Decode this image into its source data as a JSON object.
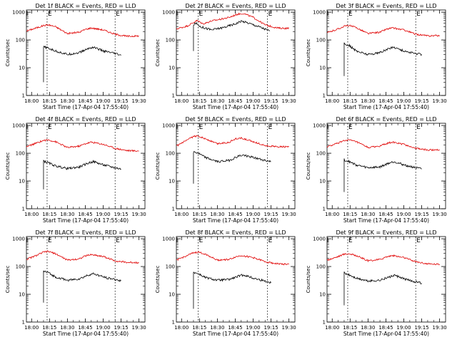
{
  "figure": {
    "colors": {
      "events": "#000000",
      "lld": "#e00000",
      "axes": "#000000"
    }
  },
  "chart_data": [
    {
      "type": "line",
      "title": "Det 1f BLACK = Events, RED = LLD",
      "xlabel": "Start Time (17-Apr-04 17:55:40)",
      "ylabel": "Counts/sec",
      "x_ticks": [
        "18:00",
        "18:15",
        "18:30",
        "18:45",
        "19:00",
        "19:15",
        "19:30"
      ],
      "y_ticks": [
        "1",
        "10",
        "100",
        "1000"
      ],
      "xlim": [
        "17:55:40",
        "19:35"
      ],
      "ylim": [
        1,
        1200
      ],
      "y_scale": "log",
      "markers": [
        "18:13",
        "19:10"
      ],
      "marker_labels": [
        "E",
        "E"
      ],
      "grid": false,
      "series": [
        {
          "x": [
            "17:55:40",
            "18:05",
            "18:10",
            "18:14",
            "18:20",
            "18:30",
            "18:40",
            "18:45",
            "18:50",
            "19:00",
            "19:10",
            "19:20",
            "19:30"
          ],
          "y": [
            210,
            280,
            330,
            350,
            300,
            170,
            190,
            240,
            270,
            230,
            160,
            135,
            140
          ]
        },
        {
          "x": [
            "18:10",
            "18:10",
            "18:11",
            "18:14",
            "18:20",
            "18:30",
            "18:40",
            "18:48",
            "18:52",
            "19:00",
            "19:10",
            "19:15"
          ],
          "y": [
            3,
            55,
            55,
            50,
            40,
            30,
            35,
            50,
            55,
            40,
            32,
            28
          ]
        }
      ]
    },
    {
      "type": "line",
      "title": "Det 2f BLACK = Events, RED = LLD",
      "xlabel": "Start Time (17-Apr-04 17:55:40)",
      "ylabel": "Counts/sec",
      "x_ticks": [
        "18:00",
        "18:15",
        "18:30",
        "18:45",
        "19:00",
        "19:15",
        "19:30"
      ],
      "y_ticks": [
        "1",
        "10",
        "100",
        "1000"
      ],
      "xlim": [
        "17:55:40",
        "19:35"
      ],
      "ylim": [
        1,
        1200
      ],
      "y_scale": "log",
      "markers": [
        "18:14",
        "19:12"
      ],
      "marker_labels": [
        "E",
        "E"
      ],
      "grid": false,
      "series": [
        {
          "x": [
            "17:55:40",
            "18:05",
            "18:13",
            "18:18",
            "18:25",
            "18:32",
            "18:40",
            "18:47",
            "18:52",
            "19:00",
            "19:10",
            "19:20",
            "19:30"
          ],
          "y": [
            250,
            320,
            500,
            380,
            480,
            550,
            650,
            850,
            900,
            650,
            350,
            270,
            260
          ]
        },
        {
          "x": [
            "18:10",
            "18:10",
            "18:12",
            "18:16",
            "18:25",
            "18:35",
            "18:45",
            "18:50",
            "18:55",
            "19:05",
            "19:14"
          ],
          "y": [
            40,
            350,
            400,
            300,
            230,
            280,
            380,
            480,
            420,
            300,
            210
          ]
        }
      ]
    },
    {
      "type": "line",
      "title": "Det 3f BLACK = Events, RED = LLD",
      "xlabel": "Start Time (17-Apr-04 17:55:40)",
      "ylabel": "Counts/sec",
      "x_ticks": [
        "18:00",
        "18:15",
        "18:30",
        "18:45",
        "19:00",
        "19:15",
        "19:30"
      ],
      "y_ticks": [
        "1",
        "10",
        "100",
        "1000"
      ],
      "xlim": [
        "17:55:40",
        "19:35"
      ],
      "ylim": [
        1,
        1200
      ],
      "y_scale": "log",
      "markers": [
        "18:13",
        "19:10"
      ],
      "marker_labels": [
        "E",
        "E"
      ],
      "grid": false,
      "series": [
        {
          "x": [
            "17:55:40",
            "18:05",
            "18:10",
            "18:14",
            "18:20",
            "18:30",
            "18:40",
            "18:45",
            "18:50",
            "19:00",
            "19:10",
            "19:20",
            "19:30"
          ],
          "y": [
            180,
            250,
            310,
            330,
            280,
            170,
            190,
            240,
            270,
            230,
            160,
            140,
            145
          ]
        },
        {
          "x": [
            "18:10",
            "18:10",
            "18:11",
            "18:14",
            "18:20",
            "18:30",
            "18:40",
            "18:48",
            "18:52",
            "19:00",
            "19:10",
            "19:15"
          ],
          "y": [
            5,
            75,
            70,
            65,
            40,
            30,
            35,
            50,
            55,
            40,
            32,
            30
          ]
        }
      ]
    },
    {
      "type": "line",
      "title": "Det 4f BLACK = Events, RED = LLD",
      "xlabel": "Start Time (17-Apr-04 17:55:40)",
      "ylabel": "Counts/sec",
      "x_ticks": [
        "18:00",
        "18:15",
        "18:30",
        "18:45",
        "19:00",
        "19:15",
        "19:30"
      ],
      "y_ticks": [
        "1",
        "10",
        "100",
        "1000"
      ],
      "xlim": [
        "17:55:40",
        "19:35"
      ],
      "ylim": [
        1,
        1200
      ],
      "y_scale": "log",
      "markers": [
        "18:13",
        "19:10"
      ],
      "marker_labels": [
        "E",
        "E"
      ],
      "grid": false,
      "series": [
        {
          "x": [
            "17:55:40",
            "18:05",
            "18:10",
            "18:14",
            "18:20",
            "18:30",
            "18:40",
            "18:45",
            "18:50",
            "19:00",
            "19:10",
            "19:20",
            "19:30"
          ],
          "y": [
            170,
            240,
            290,
            300,
            260,
            160,
            180,
            220,
            250,
            210,
            150,
            125,
            120
          ]
        },
        {
          "x": [
            "18:10",
            "18:10",
            "18:11",
            "18:14",
            "18:20",
            "18:30",
            "18:40",
            "18:48",
            "18:52",
            "19:00",
            "19:10",
            "19:15"
          ],
          "y": [
            5,
            55,
            50,
            45,
            35,
            28,
            32,
            45,
            50,
            38,
            30,
            27
          ]
        }
      ]
    },
    {
      "type": "line",
      "title": "Det 5f BLACK = Events, RED = LLD",
      "xlabel": "Start Time (17-Apr-04 17:55:40)",
      "ylabel": "Counts/sec",
      "x_ticks": [
        "18:00",
        "18:15",
        "18:30",
        "18:45",
        "19:00",
        "19:15",
        "19:30"
      ],
      "y_ticks": [
        "1",
        "10",
        "100",
        "1000"
      ],
      "xlim": [
        "17:55:40",
        "19:35"
      ],
      "ylim": [
        1,
        1200
      ],
      "y_scale": "log",
      "markers": [
        "18:14",
        "19:12"
      ],
      "marker_labels": [
        "E",
        "E"
      ],
      "grid": false,
      "series": [
        {
          "x": [
            "17:55:40",
            "18:05",
            "18:10",
            "18:14",
            "18:20",
            "18:30",
            "18:40",
            "18:45",
            "18:50",
            "19:00",
            "19:10",
            "19:20",
            "19:30"
          ],
          "y": [
            180,
            300,
            400,
            420,
            330,
            220,
            250,
            330,
            350,
            260,
            190,
            170,
            170
          ]
        },
        {
          "x": [
            "18:10",
            "18:10",
            "18:11",
            "18:14",
            "18:20",
            "18:30",
            "18:40",
            "18:48",
            "18:52",
            "19:00",
            "19:10",
            "19:15"
          ],
          "y": [
            8,
            110,
            110,
            100,
            70,
            50,
            55,
            80,
            85,
            70,
            55,
            50
          ]
        }
      ]
    },
    {
      "type": "line",
      "title": "Det 6f BLACK = Events, RED = LLD",
      "xlabel": "Start Time (17-Apr-04 17:55:40)",
      "ylabel": "Counts/sec",
      "x_ticks": [
        "18:00",
        "18:15",
        "18:30",
        "18:45",
        "19:00",
        "19:15",
        "19:30"
      ],
      "y_ticks": [
        "1",
        "10",
        "100",
        "1000"
      ],
      "xlim": [
        "17:55:40",
        "19:35"
      ],
      "ylim": [
        1,
        1200
      ],
      "y_scale": "log",
      "markers": [
        "18:13",
        "19:10"
      ],
      "marker_labels": [
        "E",
        "E"
      ],
      "grid": false,
      "series": [
        {
          "x": [
            "17:55:40",
            "18:05",
            "18:10",
            "18:14",
            "18:20",
            "18:30",
            "18:40",
            "18:45",
            "18:50",
            "19:00",
            "19:10",
            "19:20",
            "19:30"
          ],
          "y": [
            170,
            230,
            290,
            300,
            260,
            160,
            180,
            220,
            250,
            210,
            150,
            130,
            135
          ]
        },
        {
          "x": [
            "18:10",
            "18:10",
            "18:11",
            "18:14",
            "18:20",
            "18:30",
            "18:40",
            "18:48",
            "18:52",
            "19:00",
            "19:10",
            "19:15"
          ],
          "y": [
            4,
            60,
            55,
            50,
            38,
            30,
            32,
            45,
            50,
            38,
            30,
            27
          ]
        }
      ]
    },
    {
      "type": "line",
      "title": "Det 7f BLACK = Events, RED = LLD",
      "xlabel": "Start Time (17-Apr-04 17:55:40)",
      "ylabel": "Counts/sec",
      "x_ticks": [
        "18:00",
        "18:15",
        "18:30",
        "18:45",
        "19:00",
        "19:15",
        "19:30"
      ],
      "y_ticks": [
        "1",
        "10",
        "100",
        "1000"
      ],
      "xlim": [
        "17:55:40",
        "19:35"
      ],
      "ylim": [
        1,
        1200
      ],
      "y_scale": "log",
      "markers": [
        "18:13",
        "19:10"
      ],
      "marker_labels": [
        "E",
        "E"
      ],
      "grid": false,
      "series": [
        {
          "x": [
            "17:55:40",
            "18:05",
            "18:10",
            "18:14",
            "18:20",
            "18:30",
            "18:40",
            "18:45",
            "18:50",
            "19:00",
            "19:10",
            "19:20",
            "19:30"
          ],
          "y": [
            180,
            260,
            330,
            350,
            290,
            170,
            190,
            240,
            270,
            230,
            160,
            140,
            140
          ]
        },
        {
          "x": [
            "18:10",
            "18:10",
            "18:11",
            "18:14",
            "18:20",
            "18:30",
            "18:40",
            "18:48",
            "18:52",
            "19:00",
            "19:10",
            "19:15"
          ],
          "y": [
            5,
            70,
            65,
            60,
            42,
            32,
            36,
            50,
            55,
            42,
            34,
            31
          ]
        }
      ]
    },
    {
      "type": "line",
      "title": "Det 8f BLACK = Events, RED = LLD",
      "xlabel": "Start Time (17-Apr-04 17:55:40)",
      "ylabel": "Counts/sec",
      "x_ticks": [
        "18:00",
        "18:15",
        "18:30",
        "18:45",
        "19:00",
        "19:15",
        "19:30"
      ],
      "y_ticks": [
        "1",
        "10",
        "100",
        "1000"
      ],
      "xlim": [
        "17:55:40",
        "19:35"
      ],
      "ylim": [
        1,
        1200
      ],
      "y_scale": "log",
      "markers": [
        "18:14",
        "19:12"
      ],
      "marker_labels": [
        "E",
        "E"
      ],
      "grid": false,
      "series": [
        {
          "x": [
            "17:55:40",
            "18:05",
            "18:10",
            "18:14",
            "18:20",
            "18:30",
            "18:40",
            "18:45",
            "18:50",
            "19:00",
            "19:10",
            "19:20",
            "19:30"
          ],
          "y": [
            170,
            250,
            310,
            330,
            280,
            170,
            180,
            220,
            250,
            210,
            150,
            125,
            120
          ]
        },
        {
          "x": [
            "18:10",
            "18:10",
            "18:11",
            "18:14",
            "18:20",
            "18:30",
            "18:40",
            "18:48",
            "18:52",
            "19:00",
            "19:10",
            "19:15"
          ],
          "y": [
            3,
            65,
            60,
            55,
            40,
            32,
            34,
            45,
            50,
            38,
            30,
            26
          ]
        }
      ]
    },
    {
      "type": "line",
      "title": "Det 9f BLACK = Events, RED = LLD",
      "xlabel": "Start Time (17-Apr-04 17:55:40)",
      "ylabel": "Counts/sec",
      "x_ticks": [
        "18:00",
        "18:15",
        "18:30",
        "18:45",
        "19:00",
        "19:15",
        "19:30"
      ],
      "y_ticks": [
        "1",
        "10",
        "100",
        "1000"
      ],
      "xlim": [
        "17:55:40",
        "19:35"
      ],
      "ylim": [
        1,
        1200
      ],
      "y_scale": "log",
      "markers": [
        "18:13",
        "19:10"
      ],
      "marker_labels": [
        "E",
        "E"
      ],
      "grid": false,
      "series": [
        {
          "x": [
            "17:55:40",
            "18:05",
            "18:10",
            "18:14",
            "18:20",
            "18:30",
            "18:40",
            "18:45",
            "18:50",
            "19:00",
            "19:10",
            "19:20",
            "19:30"
          ],
          "y": [
            170,
            230,
            280,
            290,
            250,
            160,
            180,
            220,
            250,
            210,
            150,
            125,
            120
          ]
        },
        {
          "x": [
            "18:10",
            "18:10",
            "18:11",
            "18:14",
            "18:20",
            "18:30",
            "18:40",
            "18:48",
            "18:52",
            "19:00",
            "19:10",
            "19:15"
          ],
          "y": [
            4,
            60,
            55,
            50,
            38,
            30,
            32,
            42,
            48,
            36,
            28,
            25
          ]
        }
      ]
    }
  ]
}
